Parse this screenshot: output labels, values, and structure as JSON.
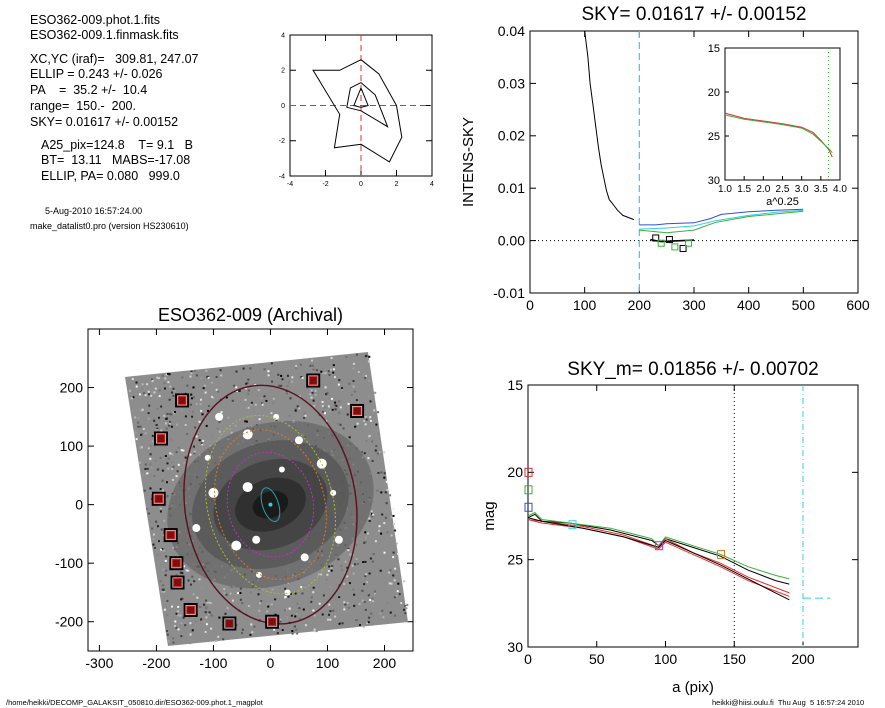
{
  "info": {
    "lines": [
      {
        "text": "ESO362-009.phot.1.fits",
        "x": 30,
        "y": 24
      },
      {
        "text": "ESO362-009.1.finmask.fits",
        "x": 30,
        "y": 39
      },
      {
        "text": "XC,YC (iraf)=   309.81, 247.07",
        "x": 30,
        "y": 63
      },
      {
        "text": "ELLIP = 0.243 +/- 0.026",
        "x": 30,
        "y": 78
      },
      {
        "text": "PA    =  35.2 +/-  10.4",
        "x": 30,
        "y": 94
      },
      {
        "text": "range=  150.-  200.",
        "x": 30,
        "y": 110
      },
      {
        "text": "SKY= 0.01617 +/- 0.00152",
        "x": 30,
        "y": 126
      },
      {
        "text": "A25_pix=124.8    T= 9.1   B",
        "x": 41,
        "y": 149
      },
      {
        "text": "BT=  13.11   MABS=-17.08",
        "x": 41,
        "y": 164
      },
      {
        "text": "ELLIP, PA= 0.080   999.0",
        "x": 41,
        "y": 180
      }
    ],
    "date": "5-Aug-2010 16:57:24.00",
    "program": "make_datalist0.pro (version HS230610)"
  },
  "footer": {
    "left": "/home/heikki/DECOMP_GALAKSIT_050810.dir/ESO362-009.phot.1_magplot",
    "right": "heikki@hiisi.oulu.fi  Thu Aug  5 16:57:24 2010"
  },
  "chart_data": [
    {
      "id": "contour",
      "type": "line",
      "title": "",
      "xlim": [
        -4,
        4
      ],
      "ylim": [
        -4,
        4
      ],
      "xticks": [
        "-4",
        "-2",
        "0",
        "2",
        "4"
      ],
      "yticks": [
        "-4",
        "-2",
        "0",
        "2",
        "4"
      ],
      "series": [
        {
          "values": [
            [
              0,
              2.6
            ],
            [
              1,
              1.8
            ],
            [
              2,
              0
            ],
            [
              2.3,
              -1.8
            ],
            [
              1.6,
              -3.2
            ],
            [
              0,
              -2.2
            ],
            [
              -1.5,
              -2.4
            ],
            [
              -1.2,
              -0.5
            ],
            [
              -2.7,
              2
            ],
            [
              -1.2,
              2
            ],
            [
              0,
              2.6
            ]
          ]
        },
        {
          "values": [
            [
              0,
              1.3
            ],
            [
              0.8,
              0.6
            ],
            [
              1.5,
              -1.2
            ],
            [
              0,
              -0.3
            ],
            [
              -0.8,
              -0.1
            ],
            [
              -0.6,
              1
            ],
            [
              0,
              1.3
            ]
          ]
        },
        {
          "values": [
            [
              0,
              1
            ],
            [
              0.4,
              0
            ],
            [
              0,
              -0.1
            ],
            [
              -0.4,
              0
            ],
            [
              0,
              1
            ]
          ]
        }
      ]
    },
    {
      "id": "sky",
      "type": "line",
      "title": "SKY= 0.01617 +/- 0.00152",
      "ylabel": "INTENS-SKY",
      "xlim": [
        0,
        600
      ],
      "ylim": [
        -0.01,
        0.04
      ],
      "xticks": [
        "0",
        "100",
        "200",
        "300",
        "400",
        "500",
        "600"
      ],
      "yticks": [
        "-0.01",
        "0.00",
        "0.01",
        "0.02",
        "0.03",
        "0.04"
      ],
      "vline": 200,
      "series": [
        {
          "values": [
            [
              100,
              0.04
            ],
            [
              106,
              0.035
            ],
            [
              110,
              0.03
            ],
            [
              115,
              0.026
            ],
            [
              120,
              0.022
            ],
            [
              125,
              0.018
            ],
            [
              130,
              0.0145
            ],
            [
              135,
              0.012
            ],
            [
              140,
              0.0095
            ],
            [
              145,
              0.0078
            ],
            [
              150,
              0.0072
            ],
            [
              155,
              0.0065
            ],
            [
              160,
              0.0058
            ],
            [
              165,
              0.0053
            ],
            [
              170,
              0.0048
            ],
            [
              180,
              0.0044
            ],
            [
              190,
              0.004
            ]
          ]
        },
        {
          "values": [
            [
              200,
              0.003
            ],
            [
              230,
              0.003
            ],
            [
              250,
              0.0032
            ],
            [
              300,
              0.0034
            ],
            [
              330,
              0.0042
            ],
            [
              350,
              0.005
            ],
            [
              400,
              0.0055
            ],
            [
              450,
              0.0058
            ],
            [
              500,
              0.006
            ]
          ]
        },
        {
          "values": [
            [
              200,
              0.0022
            ],
            [
              250,
              0.0024
            ],
            [
              300,
              0.0028
            ],
            [
              340,
              0.0038
            ],
            [
              400,
              0.0048
            ],
            [
              450,
              0.0054
            ],
            [
              500,
              0.0058
            ]
          ]
        },
        {
          "values": [
            [
              200,
              0.002
            ],
            [
              250,
              0.0015
            ],
            [
              300,
              0.002
            ],
            [
              340,
              0.0035
            ],
            [
              400,
              0.0046
            ],
            [
              500,
              0.0056
            ]
          ]
        },
        {
          "values": [
            [
              220,
              0.0002
            ],
            [
              240,
              -0.0002
            ],
            [
              260,
              -0.0001
            ],
            [
              280,
              0.0
            ],
            [
              300,
              0.0001
            ]
          ]
        }
      ],
      "markers": [
        {
          "x": 230,
          "y": 0.0005
        },
        {
          "x": 240,
          "y": -0.0005
        },
        {
          "x": 255,
          "y": 0.0002
        },
        {
          "x": 265,
          "y": -0.0012
        },
        {
          "x": 280,
          "y": -0.0015
        },
        {
          "x": 290,
          "y": -0.0005
        }
      ],
      "inset": {
        "xlabel": "a^0.25",
        "xlim": [
          1.0,
          4.0
        ],
        "ylim": [
          30,
          15
        ],
        "xticks": [
          "1.0",
          "1.5",
          "2.0",
          "2.5",
          "3.0",
          "3.5",
          "4.0"
        ],
        "yticks": [
          "15",
          "20",
          "25",
          "30"
        ],
        "series": [
          {
            "values": [
              [
                1.0,
                22.4
              ],
              [
                1.5,
                23.0
              ],
              [
                2.0,
                23.3
              ],
              [
                2.5,
                23.6
              ],
              [
                3.0,
                24.0
              ],
              [
                3.3,
                24.6
              ],
              [
                3.5,
                25.5
              ],
              [
                3.7,
                26.5
              ],
              [
                3.8,
                27.4
              ]
            ]
          },
          {
            "values": [
              [
                1.0,
                22.6
              ],
              [
                1.5,
                23.1
              ],
              [
                2.0,
                23.4
              ],
              [
                2.5,
                23.7
              ],
              [
                3.0,
                24.1
              ],
              [
                3.3,
                24.8
              ],
              [
                3.5,
                25.6
              ],
              [
                3.7,
                26.4
              ],
              [
                3.8,
                26.9
              ]
            ]
          }
        ]
      }
    },
    {
      "id": "image",
      "type": "scatter",
      "title": "ESO362-009 (Archival)",
      "xlim": [
        -320,
        250
      ],
      "ylim": [
        -250,
        300
      ],
      "xticks": [
        "-300",
        "-200",
        "-100",
        "0",
        "100",
        "200"
      ],
      "yticks": [
        "-200",
        "-100",
        "0",
        "100",
        "200"
      ],
      "center": [
        0,
        0
      ],
      "markers": [
        {
          "x": 75,
          "y": 212
        },
        {
          "x": 152,
          "y": 160
        },
        {
          "x": -155,
          "y": 178
        },
        {
          "x": -192,
          "y": 113
        },
        {
          "x": -196,
          "y": 10
        },
        {
          "x": -175,
          "y": -52
        },
        {
          "x": -165,
          "y": -100
        },
        {
          "x": -163,
          "y": -133
        },
        {
          "x": -140,
          "y": -180
        },
        {
          "x": -72,
          "y": -203
        },
        {
          "x": 3,
          "y": -200
        }
      ],
      "ellipses": [
        {
          "a": 90,
          "b": 75,
          "pa": 20
        },
        {
          "a": 130,
          "b": 95,
          "pa": 25
        },
        {
          "a": 155,
          "b": 110,
          "pa": 25
        },
        {
          "a": 205,
          "b": 150,
          "pa": 15
        },
        {
          "a": 30,
          "b": 14,
          "pa": 30
        }
      ]
    },
    {
      "id": "mag",
      "type": "line",
      "title": "SKY_m=  0.01856 +/- 0.00702",
      "xlabel": "a (pix)",
      "ylabel": "mag",
      "xlim": [
        0,
        240
      ],
      "ylim": [
        30,
        15
      ],
      "xticks": [
        "0",
        "50",
        "100",
        "150",
        "200"
      ],
      "yticks": [
        "15",
        "20",
        "25",
        "30"
      ],
      "vlines": [
        150,
        200
      ],
      "series": [
        {
          "values": [
            [
              0,
              22.6
            ],
            [
              5,
              22.4
            ],
            [
              10,
              22.8
            ],
            [
              30,
              22.9
            ],
            [
              60,
              23.3
            ],
            [
              90,
              23.9
            ],
            [
              95,
              24.2
            ],
            [
              100,
              23.8
            ],
            [
              120,
              24.3
            ],
            [
              140,
              24.8
            ],
            [
              160,
              25.6
            ],
            [
              180,
              26.2
            ],
            [
              190,
              26.4
            ]
          ]
        },
        {
          "values": [
            [
              0,
              22.5
            ],
            [
              5,
              22.3
            ],
            [
              10,
              22.7
            ],
            [
              30,
              22.9
            ],
            [
              60,
              23.2
            ],
            [
              90,
              23.8
            ],
            [
              95,
              24.2
            ],
            [
              100,
              23.7
            ],
            [
              120,
              24.2
            ],
            [
              140,
              24.7
            ],
            [
              160,
              25.4
            ],
            [
              180,
              25.9
            ],
            [
              190,
              26.1
            ]
          ]
        },
        {
          "values": [
            [
              0,
              22.7
            ],
            [
              10,
              22.8
            ],
            [
              40,
              23.1
            ],
            [
              70,
              23.6
            ],
            [
              95,
              24.3
            ],
            [
              100,
              23.8
            ],
            [
              120,
              24.6
            ],
            [
              140,
              25.2
            ],
            [
              160,
              26.0
            ],
            [
              180,
              26.6
            ],
            [
              190,
              26.9
            ]
          ]
        },
        {
          "values": [
            [
              0,
              22.7
            ],
            [
              10,
              22.9
            ],
            [
              40,
              23.2
            ],
            [
              70,
              23.7
            ],
            [
              95,
              24.4
            ],
            [
              100,
              24.0
            ],
            [
              120,
              24.7
            ],
            [
              140,
              25.4
            ],
            [
              160,
              26.2
            ],
            [
              180,
              26.8
            ],
            [
              190,
              27.1
            ]
          ]
        },
        {
          "values": [
            [
              0,
              22.6
            ],
            [
              10,
              22.8
            ],
            [
              40,
              23.2
            ],
            [
              70,
              23.7
            ],
            [
              95,
              24.3
            ],
            [
              100,
              23.9
            ],
            [
              120,
              24.6
            ],
            [
              140,
              25.3
            ],
            [
              160,
              26.1
            ],
            [
              180,
              26.9
            ],
            [
              190,
              27.3
            ]
          ]
        },
        {
          "values": [
            [
              200,
              27.2
            ],
            [
              220,
              27.2
            ]
          ]
        }
      ],
      "markers": [
        {
          "x": 0,
          "y": 20.0
        },
        {
          "x": 0,
          "y": 21.0
        },
        {
          "x": 0,
          "y": 22.0
        },
        {
          "x": 32,
          "y": 23.0
        },
        {
          "x": 95,
          "y": 24.2
        },
        {
          "x": 140,
          "y": 24.7
        }
      ]
    }
  ],
  "colors": {
    "red": "#e03030",
    "green": "#3ab03a",
    "blue": "#3050d0",
    "cyan": "#30d0e0",
    "magenta": "#c030c0",
    "orange": "#e07820",
    "yellowgreen": "#a8c030",
    "maroon": "#5a1020",
    "black": "#000000",
    "markerdark": "#7a1010"
  }
}
